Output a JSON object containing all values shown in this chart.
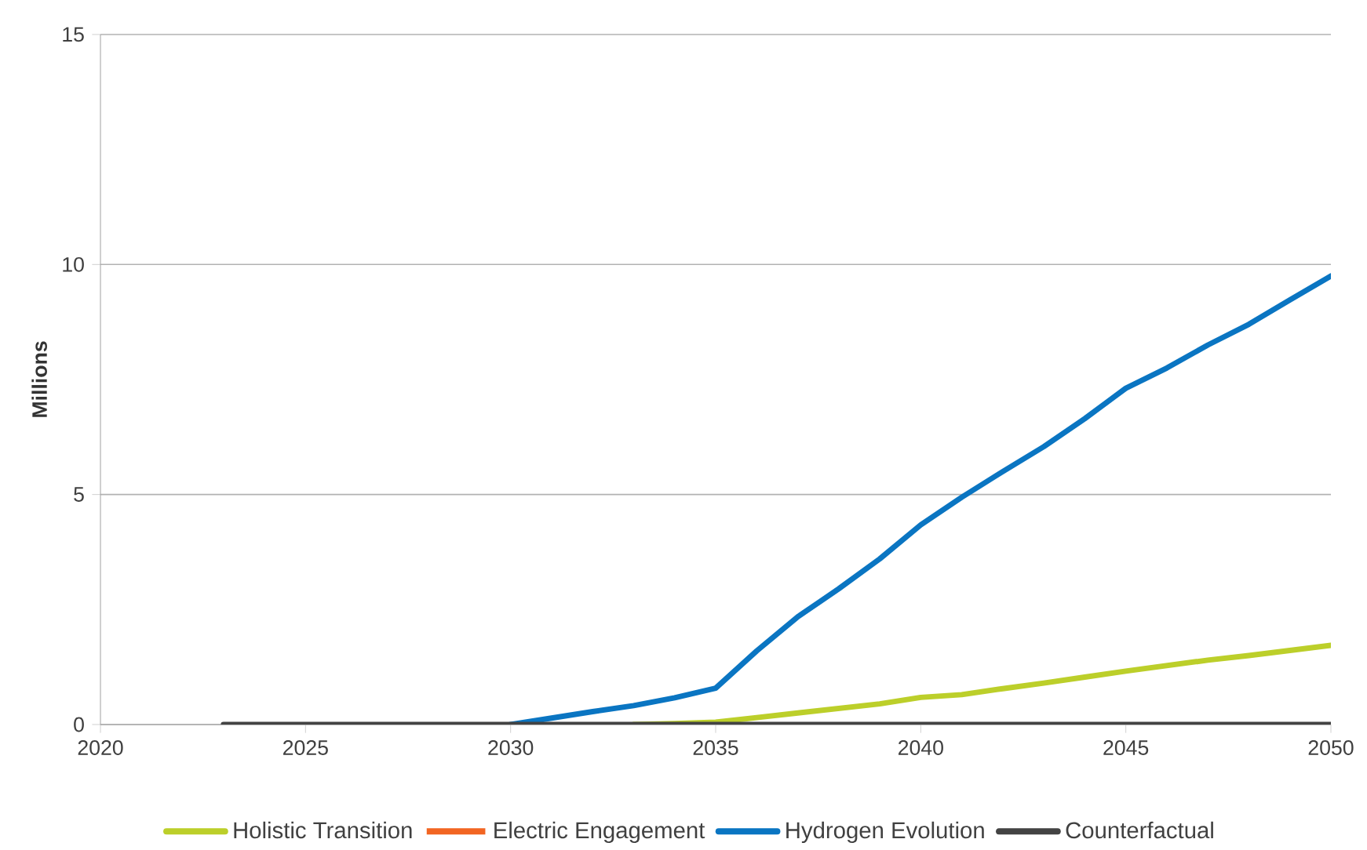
{
  "chart_data": {
    "type": "line",
    "ylabel": "Millions",
    "x": [
      2023,
      2024,
      2025,
      2026,
      2027,
      2028,
      2029,
      2030,
      2031,
      2032,
      2033,
      2034,
      2035,
      2036,
      2037,
      2038,
      2039,
      2040,
      2041,
      2042,
      2043,
      2044,
      2045,
      2046,
      2047,
      2048,
      2049,
      2050
    ],
    "xlim": [
      2020,
      2050
    ],
    "xticks": [
      2020,
      2025,
      2030,
      2035,
      2040,
      2045,
      2050
    ],
    "ylim": [
      0,
      15
    ],
    "yticks": [
      0,
      5,
      10,
      15
    ],
    "grid": "y",
    "legend": "bottom",
    "series": [
      {
        "name": "Holistic Transition",
        "color": "#bccf2a",
        "values": [
          null,
          null,
          null,
          null,
          null,
          null,
          null,
          null,
          null,
          null,
          0,
          0.02,
          0.05,
          0.15,
          0.25,
          0.35,
          0.45,
          0.59,
          0.65,
          0.78,
          0.9,
          1.03,
          1.16,
          1.28,
          1.4,
          1.5,
          1.61,
          1.72
        ]
      },
      {
        "name": "Electric Engagement",
        "color": "#f26522",
        "values": [
          null,
          null,
          null,
          null,
          null,
          null,
          null,
          null,
          null,
          null,
          null,
          null,
          null,
          null,
          null,
          null,
          null,
          null,
          null,
          null,
          null,
          null,
          null,
          null,
          null,
          null,
          null,
          null
        ]
      },
      {
        "name": "Hydrogen Evolution",
        "color": "#0a75c2",
        "values": [
          null,
          null,
          null,
          null,
          null,
          null,
          null,
          0,
          0.14,
          0.28,
          0.41,
          0.58,
          0.79,
          1.6,
          2.34,
          2.95,
          3.6,
          4.34,
          4.94,
          5.5,
          6.04,
          6.65,
          7.31,
          7.75,
          8.25,
          8.7,
          9.23,
          9.75
        ]
      },
      {
        "name": "Counterfactual",
        "color": "#434343",
        "values": [
          0,
          0,
          0,
          0,
          0,
          0,
          0,
          0,
          0,
          0,
          0,
          0,
          0,
          0,
          0,
          0,
          0,
          0,
          0,
          0,
          0,
          0,
          0,
          0,
          0,
          0,
          0,
          0
        ]
      }
    ]
  }
}
